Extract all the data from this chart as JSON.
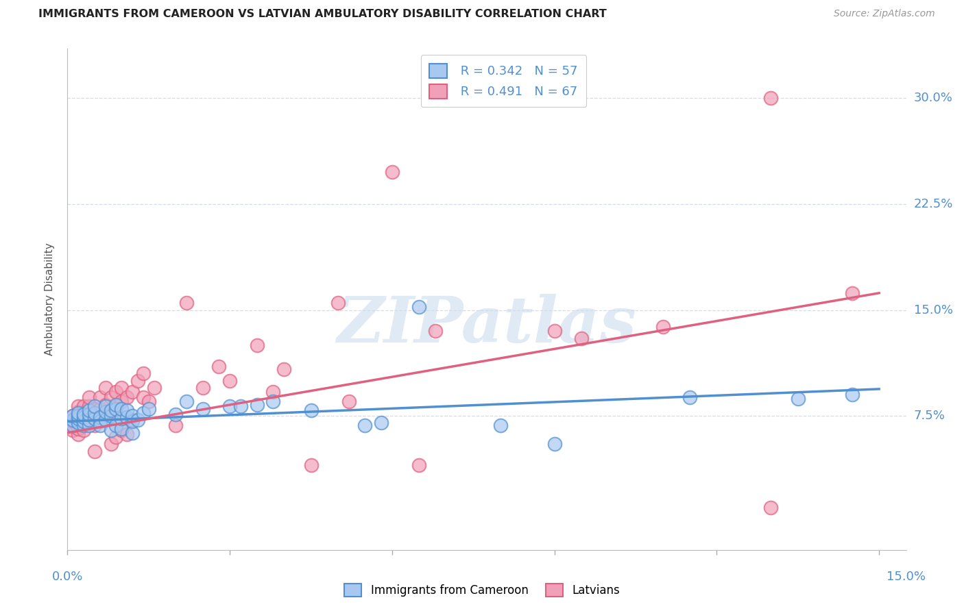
{
  "title": "IMMIGRANTS FROM CAMEROON VS LATVIAN AMBULATORY DISABILITY CORRELATION CHART",
  "source": "Source: ZipAtlas.com",
  "ylabel": "Ambulatory Disability",
  "yticks": [
    "7.5%",
    "15.0%",
    "22.5%",
    "30.0%"
  ],
  "ytick_vals": [
    0.075,
    0.15,
    0.225,
    0.3
  ],
  "xlim": [
    0.0,
    0.155
  ],
  "ylim": [
    -0.02,
    0.335
  ],
  "color_blue": "#a8c8f0",
  "color_pink": "#f0a0b8",
  "line_blue": "#5090d0",
  "line_pink": "#e06080",
  "watermark_color": "#ccdcee",
  "legend_label1": "Immigrants from Cameroon",
  "legend_label2": "Latvians",
  "blue_scatter": [
    [
      0.001,
      0.068
    ],
    [
      0.001,
      0.072
    ],
    [
      0.001,
      0.075
    ],
    [
      0.002,
      0.07
    ],
    [
      0.002,
      0.073
    ],
    [
      0.002,
      0.075
    ],
    [
      0.002,
      0.077
    ],
    [
      0.003,
      0.068
    ],
    [
      0.003,
      0.071
    ],
    [
      0.003,
      0.074
    ],
    [
      0.003,
      0.076
    ],
    [
      0.004,
      0.068
    ],
    [
      0.004,
      0.072
    ],
    [
      0.004,
      0.076
    ],
    [
      0.004,
      0.079
    ],
    [
      0.005,
      0.073
    ],
    [
      0.005,
      0.077
    ],
    [
      0.005,
      0.082
    ],
    [
      0.006,
      0.071
    ],
    [
      0.006,
      0.074
    ],
    [
      0.006,
      0.068
    ],
    [
      0.007,
      0.072
    ],
    [
      0.007,
      0.078
    ],
    [
      0.007,
      0.082
    ],
    [
      0.008,
      0.065
    ],
    [
      0.008,
      0.075
    ],
    [
      0.008,
      0.079
    ],
    [
      0.009,
      0.068
    ],
    [
      0.009,
      0.08
    ],
    [
      0.009,
      0.083
    ],
    [
      0.01,
      0.066
    ],
    [
      0.01,
      0.073
    ],
    [
      0.01,
      0.08
    ],
    [
      0.011,
      0.074
    ],
    [
      0.011,
      0.079
    ],
    [
      0.012,
      0.063
    ],
    [
      0.012,
      0.071
    ],
    [
      0.012,
      0.075
    ],
    [
      0.013,
      0.072
    ],
    [
      0.014,
      0.077
    ],
    [
      0.015,
      0.08
    ],
    [
      0.02,
      0.076
    ],
    [
      0.022,
      0.085
    ],
    [
      0.025,
      0.08
    ],
    [
      0.03,
      0.082
    ],
    [
      0.032,
      0.082
    ],
    [
      0.035,
      0.083
    ],
    [
      0.038,
      0.085
    ],
    [
      0.045,
      0.079
    ],
    [
      0.055,
      0.068
    ],
    [
      0.058,
      0.07
    ],
    [
      0.065,
      0.152
    ],
    [
      0.08,
      0.068
    ],
    [
      0.09,
      0.055
    ],
    [
      0.115,
      0.088
    ],
    [
      0.135,
      0.087
    ],
    [
      0.145,
      0.09
    ]
  ],
  "pink_scatter": [
    [
      0.001,
      0.065
    ],
    [
      0.001,
      0.068
    ],
    [
      0.001,
      0.071
    ],
    [
      0.001,
      0.075
    ],
    [
      0.002,
      0.062
    ],
    [
      0.002,
      0.066
    ],
    [
      0.002,
      0.07
    ],
    [
      0.002,
      0.074
    ],
    [
      0.002,
      0.078
    ],
    [
      0.002,
      0.082
    ],
    [
      0.003,
      0.065
    ],
    [
      0.003,
      0.069
    ],
    [
      0.003,
      0.073
    ],
    [
      0.003,
      0.077
    ],
    [
      0.003,
      0.082
    ],
    [
      0.004,
      0.07
    ],
    [
      0.004,
      0.075
    ],
    [
      0.004,
      0.082
    ],
    [
      0.004,
      0.088
    ],
    [
      0.005,
      0.068
    ],
    [
      0.005,
      0.074
    ],
    [
      0.005,
      0.08
    ],
    [
      0.006,
      0.072
    ],
    [
      0.006,
      0.08
    ],
    [
      0.006,
      0.088
    ],
    [
      0.007,
      0.075
    ],
    [
      0.007,
      0.083
    ],
    [
      0.007,
      0.095
    ],
    [
      0.008,
      0.055
    ],
    [
      0.008,
      0.078
    ],
    [
      0.008,
      0.088
    ],
    [
      0.009,
      0.06
    ],
    [
      0.009,
      0.082
    ],
    [
      0.009,
      0.092
    ],
    [
      0.01,
      0.065
    ],
    [
      0.01,
      0.085
    ],
    [
      0.01,
      0.095
    ],
    [
      0.011,
      0.062
    ],
    [
      0.011,
      0.088
    ],
    [
      0.012,
      0.072
    ],
    [
      0.012,
      0.092
    ],
    [
      0.013,
      0.1
    ],
    [
      0.014,
      0.088
    ],
    [
      0.014,
      0.105
    ],
    [
      0.015,
      0.085
    ],
    [
      0.016,
      0.095
    ],
    [
      0.02,
      0.068
    ],
    [
      0.022,
      0.155
    ],
    [
      0.025,
      0.095
    ],
    [
      0.028,
      0.11
    ],
    [
      0.03,
      0.1
    ],
    [
      0.035,
      0.125
    ],
    [
      0.038,
      0.092
    ],
    [
      0.04,
      0.108
    ],
    [
      0.045,
      0.04
    ],
    [
      0.05,
      0.155
    ],
    [
      0.052,
      0.085
    ],
    [
      0.06,
      0.248
    ],
    [
      0.065,
      0.04
    ],
    [
      0.068,
      0.135
    ],
    [
      0.09,
      0.135
    ],
    [
      0.095,
      0.13
    ],
    [
      0.11,
      0.138
    ],
    [
      0.13,
      0.01
    ],
    [
      0.13,
      0.3
    ],
    [
      0.145,
      0.162
    ],
    [
      0.005,
      0.05
    ]
  ],
  "blue_line": [
    [
      0.0,
      0.071
    ],
    [
      0.15,
      0.094
    ]
  ],
  "pink_line": [
    [
      0.0,
      0.063
    ],
    [
      0.15,
      0.162
    ]
  ],
  "xtick_positions": [
    0.0,
    0.03,
    0.06,
    0.09,
    0.12,
    0.15
  ]
}
